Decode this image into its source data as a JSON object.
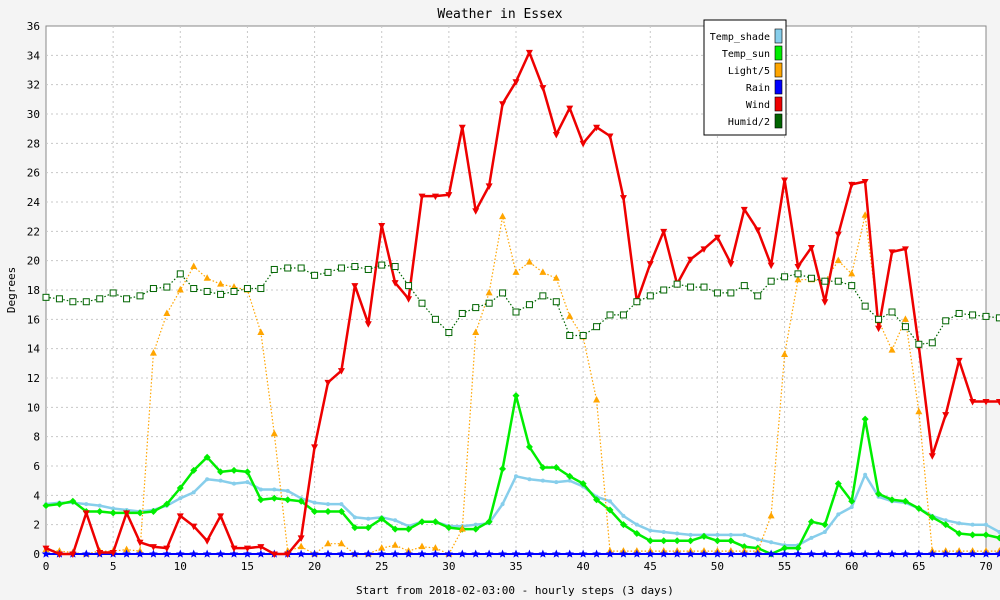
{
  "chart_data": {
    "type": "line",
    "title": "Weather in Essex",
    "xlabel": "Start from 2018-02-03:00 - hourly steps (3 days)",
    "ylabel": "Degrees",
    "xlim": [
      0,
      70
    ],
    "ylim": [
      0,
      36
    ],
    "x_ticks": [
      0,
      5,
      10,
      15,
      20,
      25,
      30,
      35,
      40,
      45,
      50,
      55,
      60,
      65,
      70
    ],
    "y_ticks": [
      0,
      2,
      4,
      6,
      8,
      10,
      12,
      14,
      16,
      18,
      20,
      22,
      24,
      26,
      28,
      30,
      32,
      34,
      36
    ],
    "grid": true,
    "legend_position": "top-right",
    "series": [
      {
        "name": "Temp_shade",
        "color": "#87ceeb",
        "marker": "dot",
        "values": [
          3.4,
          3.5,
          3.5,
          3.4,
          3.3,
          3.1,
          3.0,
          2.9,
          3.0,
          3.3,
          3.8,
          4.2,
          5.1,
          5.0,
          4.8,
          4.9,
          4.4,
          4.4,
          4.3,
          3.8,
          3.5,
          3.4,
          3.4,
          2.5,
          2.4,
          2.5,
          2.3,
          1.9,
          2.2,
          2.2,
          1.9,
          1.9,
          2.0,
          2.1,
          3.4,
          5.3,
          5.1,
          5.0,
          4.9,
          5.0,
          4.6,
          3.9,
          3.6,
          2.6,
          2.0,
          1.6,
          1.5,
          1.4,
          1.3,
          1.3,
          1.3,
          1.3,
          1.3,
          1.0,
          0.8,
          0.6,
          0.6,
          1.1,
          1.5,
          2.7,
          3.2,
          5.4,
          3.9,
          3.6,
          3.5,
          3.1,
          2.6,
          2.3,
          2.1,
          2.0,
          2.0,
          1.5
        ]
      },
      {
        "name": "Temp_sun",
        "color": "#00ee00",
        "marker": "diamond",
        "values": [
          3.3,
          3.4,
          3.6,
          2.9,
          2.9,
          2.8,
          2.8,
          2.8,
          2.9,
          3.4,
          4.5,
          5.7,
          6.6,
          5.6,
          5.7,
          5.6,
          3.7,
          3.8,
          3.7,
          3.6,
          2.9,
          2.9,
          2.9,
          1.8,
          1.8,
          2.4,
          1.7,
          1.7,
          2.2,
          2.2,
          1.8,
          1.7,
          1.7,
          2.2,
          5.8,
          10.8,
          7.3,
          5.9,
          5.9,
          5.3,
          4.8,
          3.7,
          3.0,
          2.0,
          1.4,
          0.9,
          0.9,
          0.9,
          0.9,
          1.2,
          0.9,
          0.9,
          0.5,
          0.4,
          0.0,
          0.4,
          0.4,
          2.2,
          2.0,
          4.8,
          3.6,
          9.2,
          4.1,
          3.7,
          3.6,
          3.1,
          2.5,
          2.0,
          1.4,
          1.3,
          1.3,
          1.1
        ]
      },
      {
        "name": "Light/5",
        "color": "#ffa500",
        "marker": "triangle-up",
        "values": [
          0.3,
          0.2,
          0.1,
          0.0,
          0.2,
          0.2,
          0.3,
          0.2,
          13.7,
          16.4,
          18.0,
          19.6,
          18.8,
          18.4,
          18.2,
          18.0,
          15.1,
          8.2,
          0.2,
          0.5,
          0.0,
          0.7,
          0.7,
          0.0,
          0.0,
          0.4,
          0.6,
          0.2,
          0.5,
          0.4,
          0.0,
          1.7,
          15.1,
          17.8,
          23.0,
          19.2,
          19.9,
          19.2,
          18.8,
          16.2,
          14.8,
          10.5,
          0.2,
          0.2,
          0.2,
          0.2,
          0.2,
          0.2,
          0.2,
          0.2,
          0.2,
          0.2,
          0.2,
          0.2,
          2.6,
          13.6,
          18.7,
          18.7,
          18.6,
          20.0,
          19.1,
          23.1,
          15.9,
          13.9,
          16.0,
          9.7,
          0.2,
          0.2,
          0.2,
          0.2,
          0.2,
          0.2
        ]
      },
      {
        "name": "Rain",
        "color": "#0000ff",
        "marker": "star",
        "values": [
          0,
          0,
          0,
          0,
          0,
          0,
          0,
          0,
          0,
          0,
          0,
          0,
          0,
          0,
          0,
          0,
          0,
          0,
          0,
          0,
          0,
          0,
          0,
          0,
          0,
          0,
          0,
          0,
          0,
          0,
          0,
          0,
          0,
          0,
          0,
          0,
          0,
          0,
          0,
          0,
          0,
          0,
          0,
          0,
          0,
          0,
          0,
          0,
          0,
          0,
          0,
          0,
          0,
          0,
          0,
          0,
          0,
          0,
          0,
          0,
          0,
          0,
          0,
          0,
          0,
          0,
          0,
          0,
          0,
          0,
          0,
          0
        ]
      },
      {
        "name": "Wind",
        "color": "#ee0000",
        "marker": "triangle-down",
        "values": [
          0.4,
          0.0,
          0.0,
          2.8,
          0.1,
          0.1,
          2.8,
          0.8,
          0.5,
          0.4,
          2.6,
          1.9,
          0.9,
          2.6,
          0.4,
          0.4,
          0.5,
          0.0,
          0.0,
          1.1,
          7.3,
          11.7,
          12.5,
          18.3,
          15.7,
          22.4,
          18.5,
          17.4,
          24.4,
          24.4,
          24.5,
          29.1,
          23.4,
          25.1,
          30.7,
          32.2,
          34.2,
          31.8,
          28.6,
          30.4,
          28.0,
          29.1,
          28.5,
          24.3,
          17.2,
          19.8,
          22.0,
          18.4,
          20.1,
          20.8,
          21.6,
          19.8,
          23.5,
          22.1,
          19.7,
          25.5,
          19.6,
          20.9,
          17.2,
          21.8,
          25.2,
          25.4,
          15.4,
          20.6,
          20.8,
          14.1,
          6.7,
          9.5,
          13.2,
          10.4,
          10.4,
          10.4
        ]
      },
      {
        "name": "Humid/2",
        "color": "#006400",
        "marker": "square",
        "values": [
          17.5,
          17.4,
          17.2,
          17.2,
          17.4,
          17.8,
          17.4,
          17.6,
          18.1,
          18.2,
          19.1,
          18.1,
          17.9,
          17.7,
          17.9,
          18.1,
          18.1,
          19.4,
          19.5,
          19.5,
          19.0,
          19.2,
          19.5,
          19.6,
          19.4,
          19.7,
          19.6,
          18.3,
          17.1,
          16.0,
          15.1,
          16.4,
          16.8,
          17.1,
          17.8,
          16.5,
          17.0,
          17.6,
          17.2,
          14.9,
          14.9,
          15.5,
          16.3,
          16.3,
          17.2,
          17.6,
          18.0,
          18.4,
          18.2,
          18.2,
          17.8,
          17.8,
          18.3,
          17.6,
          18.6,
          18.9,
          19.1,
          18.8,
          18.6,
          18.6,
          18.3,
          16.9,
          16.0,
          16.5,
          15.5,
          14.3,
          14.4,
          15.9,
          16.4,
          16.3,
          16.2,
          16.1
        ]
      }
    ]
  }
}
